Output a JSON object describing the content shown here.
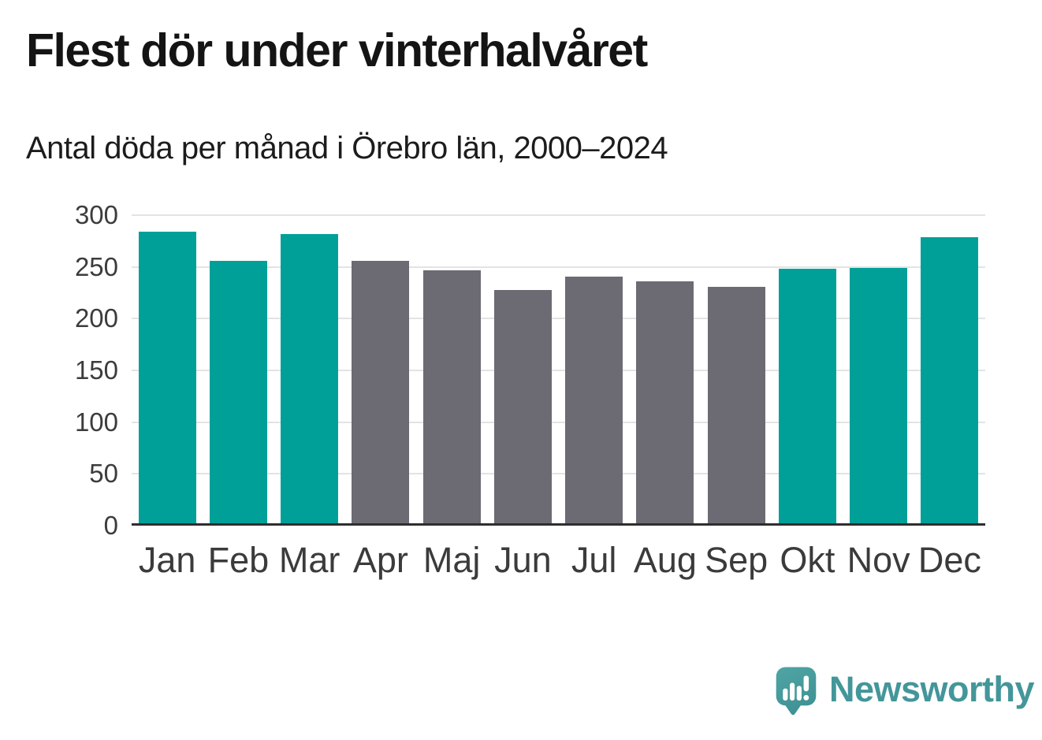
{
  "header": {
    "title": "Flest dör under vinterhalvåret",
    "subtitle": "Antal döda per månad i Örebro län, 2000–2024"
  },
  "chart_data": {
    "type": "bar",
    "title": "Flest dör under vinterhalvåret",
    "subtitle": "Antal döda per månad i Örebro län, 2000–2024",
    "categories": [
      "Jan",
      "Feb",
      "Mar",
      "Apr",
      "Maj",
      "Jun",
      "Jul",
      "Aug",
      "Sep",
      "Okt",
      "Nov",
      "Dec"
    ],
    "values": [
      284,
      256,
      282,
      256,
      247,
      228,
      241,
      236,
      231,
      248,
      249,
      279
    ],
    "bar_colors": [
      "#00a099",
      "#00a099",
      "#00a099",
      "#6c6a73",
      "#6c6a73",
      "#6c6a73",
      "#6c6a73",
      "#6c6a73",
      "#6c6a73",
      "#00a099",
      "#00a099",
      "#00a099"
    ],
    "group_colors": {
      "winter_months": "#00a099",
      "summer_months": "#6c6a73"
    },
    "y_ticks": [
      0,
      50,
      100,
      150,
      200,
      250,
      300
    ],
    "ylim": [
      0,
      300
    ],
    "xlabel": "",
    "ylabel": "",
    "grid": "horizontal",
    "gridline_color": "#e3e3e3",
    "axis_line_color": "#2e2e2e",
    "legend": "none"
  },
  "logo": {
    "text": "Newsworthy",
    "color": "#43969a",
    "icon": "speech-bubble-bar-chart-exclamation"
  }
}
